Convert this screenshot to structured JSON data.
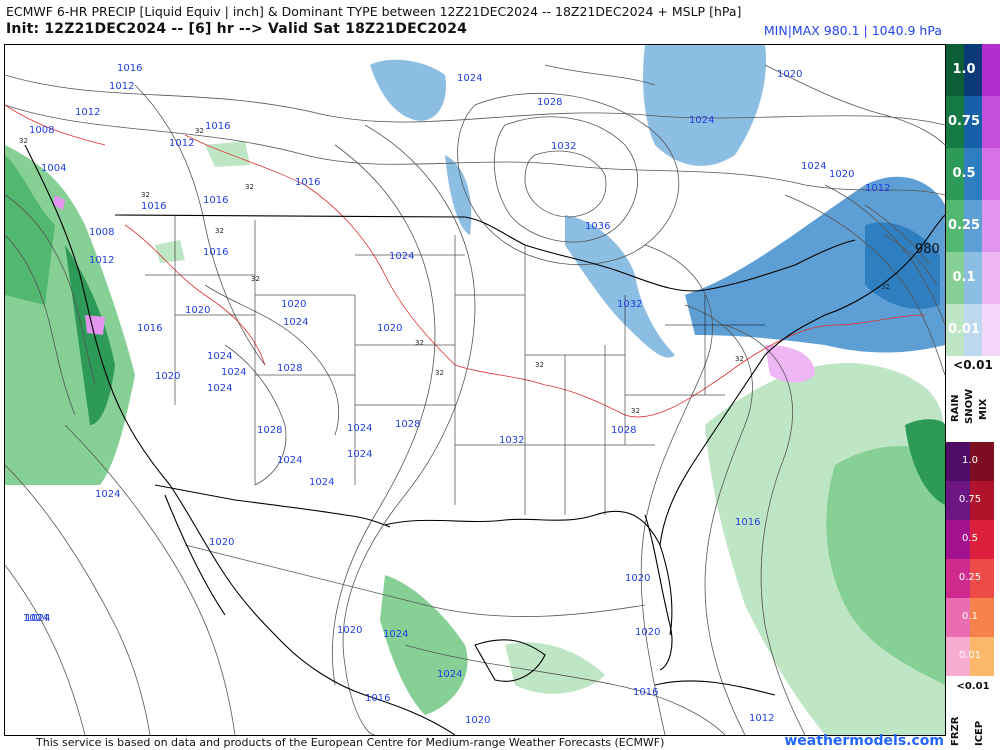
{
  "header": {
    "title_line": "ECMWF 6-HR PRECIP [Liquid Equiv | inch] & Dominant TYPE between 12Z21DEC2024 -- 18Z21DEC2024 + MSLP [hPa]",
    "init_line": "Init: 12Z21DEC2024 -- [6] hr --> Valid Sat 18Z21DEC2024",
    "minmax": "MIN|MAX 980.1 | 1040.9 hPa"
  },
  "footer": {
    "credit": "This service is based on data and products of the European Centre for Medium-range Weather Forecasts (ECMWF)",
    "brand": "weathermodels.com"
  },
  "legend": {
    "top_labels": [
      "1.0",
      "0.75",
      "0.5",
      "0.25",
      "0.1",
      "0.01"
    ],
    "top_below": "<0.01",
    "top_types": [
      "RAIN",
      "SNOW",
      "MIX"
    ],
    "bottom_labels": [
      "1.0",
      "0.75",
      "0.5",
      "0.25",
      "0.1",
      "0.01"
    ],
    "bottom_below": "<0.01",
    "bottom_types": [
      "FRZR",
      "ICEP"
    ],
    "colors": {
      "rain": [
        "#0b5e35",
        "#167a45",
        "#2e9a58",
        "#52b870",
        "#86d095",
        "#bfe6c4"
      ],
      "snow": [
        "#0a3a78",
        "#145fa8",
        "#2f7fc0",
        "#5d9ed4",
        "#8cbde3",
        "#bcd8ee"
      ],
      "mix": [
        "#b12ecf",
        "#c550dc",
        "#d671e6",
        "#e394ee",
        "#eeb6f4",
        "#f6d6f9"
      ],
      "frzr": [
        "#4e0e66",
        "#6b1683",
        "#a2128f",
        "#cf2a8d",
        "#ea6db2",
        "#f7acd0"
      ],
      "icep": [
        "#7d0d20",
        "#b0132a",
        "#dc1f3a",
        "#ee4a47",
        "#f7814a",
        "#fbb86a"
      ]
    }
  },
  "map_labels": {
    "isobars": [
      {
        "text": "1016",
        "pos": "nw-1"
      },
      {
        "text": "1012",
        "pos": "nw-2"
      },
      {
        "text": "1012",
        "pos": "nw-3"
      },
      {
        "text": "1008",
        "pos": "nw-4"
      },
      {
        "text": "1012",
        "pos": "nw-5"
      },
      {
        "text": "1004",
        "pos": "nw-6"
      },
      {
        "text": "1008",
        "pos": "nw-7"
      },
      {
        "text": "1012",
        "pos": "nw-8"
      },
      {
        "text": "1016",
        "pos": "nw-9"
      },
      {
        "text": "1016",
        "pos": "nw-10"
      },
      {
        "text": "1016",
        "pos": "nw-11"
      },
      {
        "text": "1016",
        "pos": "nw-12"
      },
      {
        "text": "1016",
        "pos": "nw-13"
      },
      {
        "text": "1016",
        "pos": "w-1"
      },
      {
        "text": "1020",
        "pos": "w-2"
      },
      {
        "text": "1020",
        "pos": "w-3"
      },
      {
        "text": "1024",
        "pos": "w-4"
      },
      {
        "text": "1024",
        "pos": "w-5"
      },
      {
        "text": "1024",
        "pos": "w-6"
      },
      {
        "text": "1028",
        "pos": "w-7"
      },
      {
        "text": "1028",
        "pos": "w-8"
      },
      {
        "text": "1024",
        "pos": "w-9"
      },
      {
        "text": "1020",
        "pos": "w-10"
      },
      {
        "text": "1024",
        "pos": "w-11"
      },
      {
        "text": "1024",
        "pos": "w-12"
      },
      {
        "text": "1024",
        "pos": "w-13"
      },
      {
        "text": "1020",
        "pos": "w-14"
      },
      {
        "text": "1024",
        "pos": "w-15"
      },
      {
        "text": "1028",
        "pos": "c-1"
      },
      {
        "text": "1024",
        "pos": "c-2"
      },
      {
        "text": "1020",
        "pos": "c-3"
      },
      {
        "text": "1024",
        "pos": "c-4"
      },
      {
        "text": "1020",
        "pos": "c-5"
      },
      {
        "text": "1024",
        "pos": "n-1"
      },
      {
        "text": "1028",
        "pos": "n-2"
      },
      {
        "text": "1032",
        "pos": "n-3"
      },
      {
        "text": "1036",
        "pos": "n-4"
      },
      {
        "text": "1032",
        "pos": "n-5"
      },
      {
        "text": "1032",
        "pos": "c-6"
      },
      {
        "text": "1028",
        "pos": "c-7"
      },
      {
        "text": "1024",
        "pos": "c-8"
      },
      {
        "text": "1020",
        "pos": "ne-1"
      },
      {
        "text": "1024",
        "pos": "ne-2"
      },
      {
        "text": "1024",
        "pos": "ne-3"
      },
      {
        "text": "1020",
        "pos": "ne-4"
      },
      {
        "text": "1012",
        "pos": "ne-5"
      },
      {
        "text": "980",
        "pos": "ne-6"
      },
      {
        "text": "1016",
        "pos": "e-1"
      },
      {
        "text": "1020",
        "pos": "e-2"
      },
      {
        "text": "1024",
        "pos": "s-1"
      },
      {
        "text": "1020",
        "pos": "s-2"
      },
      {
        "text": "1024",
        "pos": "s-3"
      },
      {
        "text": "1016",
        "pos": "s-4"
      },
      {
        "text": "1020",
        "pos": "s-5"
      },
      {
        "text": "1016",
        "pos": "s-6"
      },
      {
        "text": "1012",
        "pos": "s-7"
      },
      {
        "text": "1024",
        "pos": "sw-1"
      }
    ],
    "freezing_marker": "32"
  }
}
